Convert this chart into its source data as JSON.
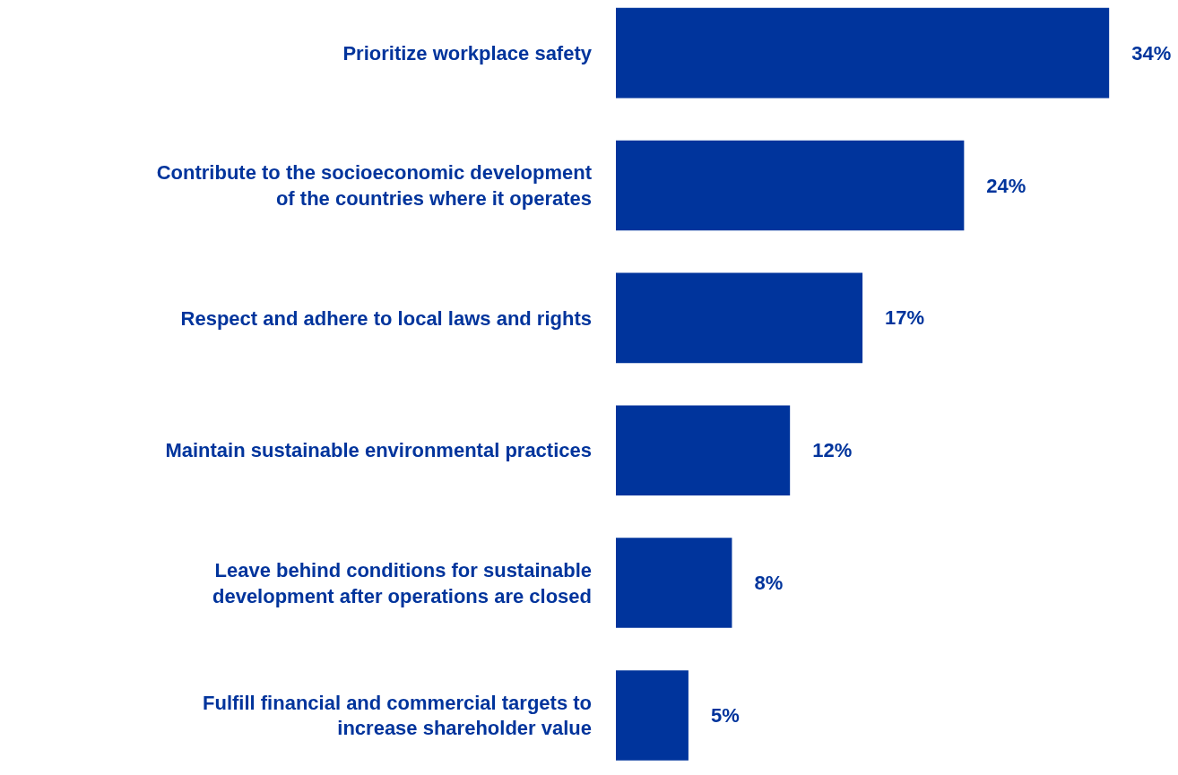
{
  "chart_data": {
    "type": "bar",
    "orientation": "horizontal",
    "categories": [
      "Prioritize workplace safety",
      "Contribute to the socioeconomic development\nof the countries where it operates",
      "Respect and adhere to local laws and rights",
      "Maintain sustainable environmental practices",
      "Leave behind conditions for sustainable\ndevelopment after operations are closed",
      "Fulfill financial and commercial targets to\nincrease shareholder value"
    ],
    "values": [
      34,
      24,
      17,
      12,
      8,
      5
    ],
    "value_labels": [
      "34%",
      "24%",
      "17%",
      "12%",
      "8%",
      "5%"
    ],
    "color": "#00349c",
    "xlim": [
      0,
      38.5
    ],
    "tick_labels": "y"
  }
}
